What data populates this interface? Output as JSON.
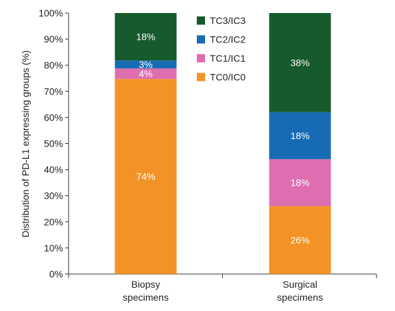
{
  "chart_data": {
    "type": "bar",
    "stacked": true,
    "ylabel": "Distribution of PD-L1 expressing groups (%)",
    "ylim": [
      0,
      100
    ],
    "yticks": [
      "0%",
      "10%",
      "20%",
      "30%",
      "40%",
      "50%",
      "60%",
      "70%",
      "80%",
      "90%",
      "100%"
    ],
    "categories": [
      [
        "Biopsy",
        "specimens"
      ],
      [
        "Surgical",
        "specimens"
      ]
    ],
    "grid": false,
    "legend_position": "top-center",
    "series": [
      {
        "name": "TC0/IC0",
        "color": "#f39325",
        "values": [
          74,
          26
        ],
        "labels": [
          "74%",
          "26%"
        ]
      },
      {
        "name": "TC1/IC1",
        "color": "#dd6fb0",
        "values": [
          4,
          18
        ],
        "labels": [
          "4%",
          "18%"
        ]
      },
      {
        "name": "TC2/IC2",
        "color": "#176bb4",
        "values": [
          3,
          18
        ],
        "labels": [
          "3%",
          "18%"
        ]
      },
      {
        "name": "TC3/IC3",
        "color": "#165a2d",
        "values": [
          18,
          38
        ],
        "labels": [
          "18%",
          "38%"
        ]
      }
    ],
    "legend_order": [
      "TC3/IC3",
      "TC2/IC2",
      "TC1/IC1",
      "TC0/IC0"
    ]
  }
}
